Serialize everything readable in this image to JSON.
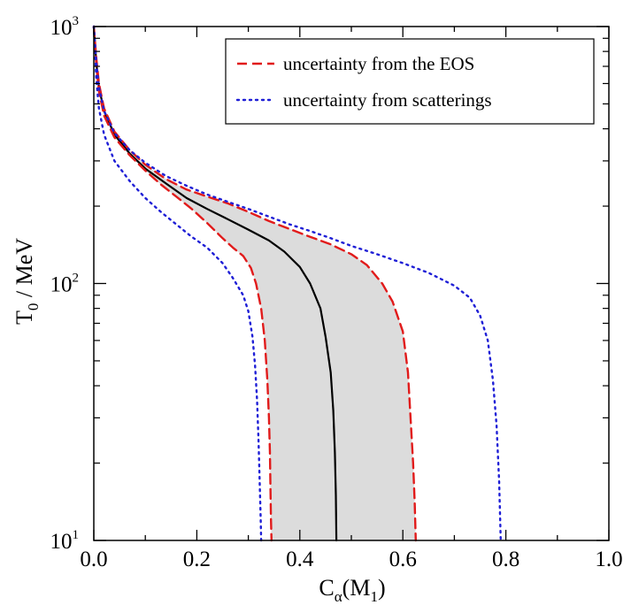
{
  "chart_data": {
    "type": "line",
    "xlabel": "C",
    "xlabel_subscript": "α",
    "xlabel_suffix": "(M",
    "xlabel_suffix_subscript": "1",
    "xlabel_close": ")",
    "ylabel": "T",
    "ylabel_subscript": "0",
    "ylabel_suffix": " / MeV",
    "xlim": [
      0.0,
      1.0
    ],
    "ylim": [
      10,
      1000
    ],
    "yscale": "log",
    "grid": false,
    "legend_position": "top-right",
    "x_ticks": [
      {
        "value": 0.0,
        "label": "0.0"
      },
      {
        "value": 0.2,
        "label": "0.2"
      },
      {
        "value": 0.4,
        "label": "0.4"
      },
      {
        "value": 0.6,
        "label": "0.6"
      },
      {
        "value": 0.8,
        "label": "0.8"
      },
      {
        "value": 1.0,
        "label": "1.0"
      }
    ],
    "y_ticks": [
      {
        "value": 10,
        "base": "10",
        "exp": "1"
      },
      {
        "value": 100,
        "base": "10",
        "exp": "2"
      },
      {
        "value": 1000,
        "base": "10",
        "exp": "3"
      }
    ],
    "shaded_band": {
      "color": "#dcdcdc",
      "upper": {
        "x": [
          0.0,
          0.005,
          0.01,
          0.02,
          0.04,
          0.07,
          0.1,
          0.14,
          0.18,
          0.22,
          0.26,
          0.3,
          0.34,
          0.38,
          0.42,
          0.46,
          0.5,
          0.53,
          0.56,
          0.58,
          0.6,
          0.61,
          0.615,
          0.62,
          0.623,
          0.625
        ],
        "y": [
          1000,
          750,
          600,
          480,
          390,
          330,
          290,
          255,
          232,
          218,
          205,
          190,
          175,
          163,
          152,
          142,
          130,
          118,
          100,
          85,
          65,
          45,
          30,
          20,
          14,
          10
        ]
      },
      "lower": {
        "x": [
          0.0,
          0.005,
          0.01,
          0.02,
          0.04,
          0.07,
          0.1,
          0.13,
          0.16,
          0.19,
          0.22,
          0.25,
          0.27,
          0.29,
          0.305,
          0.315,
          0.325,
          0.332,
          0.337,
          0.34,
          0.342,
          0.343,
          0.344,
          0.345
        ],
        "y": [
          1000,
          700,
          560,
          450,
          370,
          315,
          275,
          243,
          218,
          195,
          172,
          150,
          138,
          128,
          115,
          100,
          80,
          60,
          42,
          30,
          22,
          16,
          12,
          10
        ]
      }
    },
    "series": [
      {
        "color": "#000000",
        "style": "solid",
        "x": [
          0.0,
          0.005,
          0.01,
          0.02,
          0.04,
          0.07,
          0.1,
          0.14,
          0.18,
          0.22,
          0.26,
          0.3,
          0.34,
          0.37,
          0.4,
          0.42,
          0.44,
          0.45,
          0.46,
          0.465,
          0.468,
          0.47,
          0.471
        ],
        "y": [
          1000,
          720,
          580,
          470,
          380,
          320,
          280,
          245,
          215,
          195,
          178,
          162,
          147,
          133,
          116,
          100,
          80,
          62,
          45,
          32,
          22,
          15,
          10
        ]
      },
      {
        "name": "uncertainty from the EOS",
        "color": "#e11b1b",
        "style": "dashed",
        "x": [
          0.0,
          0.005,
          0.01,
          0.02,
          0.04,
          0.07,
          0.1,
          0.14,
          0.18,
          0.22,
          0.26,
          0.3,
          0.34,
          0.38,
          0.42,
          0.46,
          0.5,
          0.53,
          0.56,
          0.58,
          0.6,
          0.61,
          0.615,
          0.62,
          0.623,
          0.625
        ],
        "y": [
          1000,
          750,
          600,
          480,
          390,
          330,
          290,
          255,
          232,
          218,
          205,
          190,
          175,
          163,
          152,
          142,
          130,
          118,
          100,
          85,
          65,
          45,
          30,
          20,
          14,
          10
        ]
      },
      {
        "name": "",
        "color": "#e11b1b",
        "style": "dashed",
        "x": [
          0.0,
          0.005,
          0.01,
          0.02,
          0.04,
          0.07,
          0.1,
          0.13,
          0.16,
          0.19,
          0.22,
          0.25,
          0.27,
          0.29,
          0.305,
          0.315,
          0.325,
          0.332,
          0.337,
          0.34,
          0.342,
          0.343,
          0.344,
          0.345
        ],
        "y": [
          1000,
          700,
          560,
          450,
          370,
          315,
          275,
          243,
          218,
          195,
          172,
          150,
          138,
          128,
          115,
          100,
          80,
          60,
          42,
          30,
          22,
          16,
          12,
          10
        ]
      },
      {
        "name": "uncertainty from scatterings",
        "color": "#1f1fd6",
        "style": "dotted",
        "x": [
          0.0,
          0.005,
          0.01,
          0.02,
          0.04,
          0.07,
          0.1,
          0.14,
          0.18,
          0.22,
          0.26,
          0.3,
          0.34,
          0.38,
          0.42,
          0.46,
          0.5,
          0.55,
          0.6,
          0.65,
          0.7,
          0.73,
          0.75,
          0.765,
          0.775,
          0.782,
          0.787,
          0.79
        ],
        "y": [
          1000,
          720,
          580,
          470,
          385,
          330,
          295,
          262,
          240,
          222,
          208,
          195,
          182,
          170,
          160,
          150,
          140,
          130,
          120,
          110,
          98,
          88,
          75,
          60,
          42,
          28,
          17,
          10
        ]
      },
      {
        "name": "",
        "color": "#1f1fd6",
        "style": "dotted",
        "x": [
          0.0,
          0.005,
          0.01,
          0.02,
          0.04,
          0.07,
          0.1,
          0.13,
          0.16,
          0.19,
          0.22,
          0.25,
          0.27,
          0.29,
          0.3,
          0.308,
          0.313,
          0.317,
          0.32,
          0.322,
          0.324,
          0.325
        ],
        "y": [
          1000,
          620,
          480,
          380,
          300,
          250,
          215,
          190,
          170,
          152,
          138,
          120,
          105,
          90,
          78,
          62,
          48,
          35,
          24,
          17,
          12,
          10
        ]
      }
    ],
    "legend": [
      {
        "label": "uncertainty from the EOS",
        "color": "#e11b1b",
        "style": "dashed"
      },
      {
        "label": "uncertainty from scatterings",
        "color": "#1f1fd6",
        "style": "dotted"
      }
    ]
  }
}
